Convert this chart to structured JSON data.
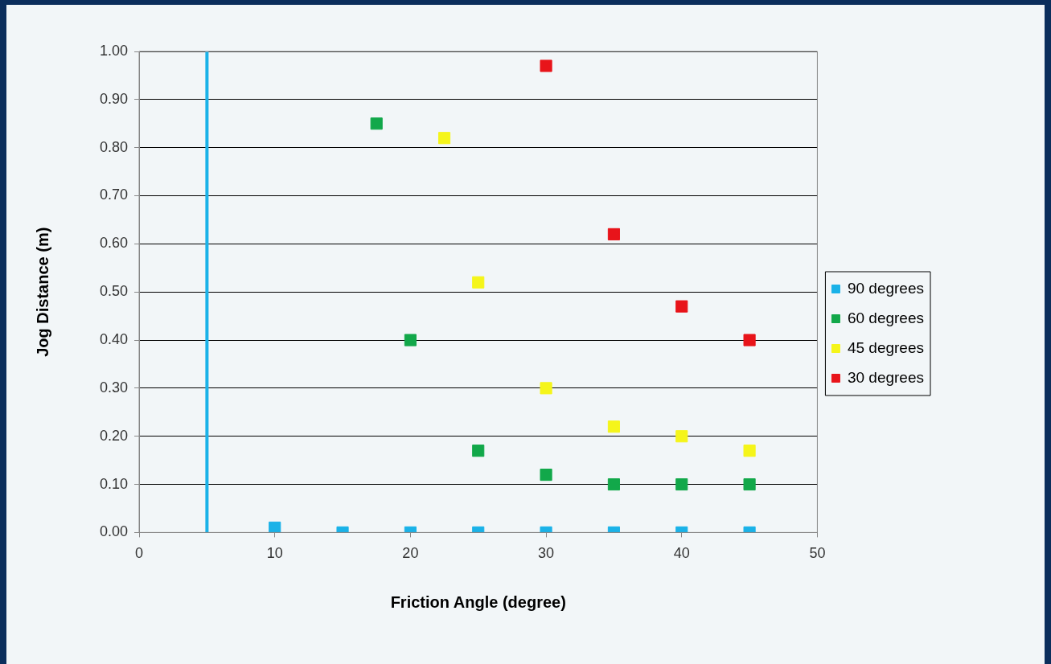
{
  "chart_data": {
    "type": "scatter",
    "xlabel": "Friction Angle (degree)",
    "ylabel": "Jog Distance (m)",
    "xlim": [
      0,
      50
    ],
    "xticks": [
      0,
      10,
      20,
      30,
      40,
      50
    ],
    "ylim": [
      0,
      1
    ],
    "yticks": [
      {
        "value": 0,
        "label": "0.00"
      },
      {
        "value": 0.1,
        "label": "0.10"
      },
      {
        "value": 0.2,
        "label": "0.20"
      },
      {
        "value": 0.3,
        "label": "0.30"
      },
      {
        "value": 0.4,
        "label": "0.40"
      },
      {
        "value": 0.5,
        "label": "0.50"
      },
      {
        "value": 0.6,
        "label": "0.60"
      },
      {
        "value": 0.7,
        "label": "0.70"
      },
      {
        "value": 0.8,
        "label": "0.80"
      },
      {
        "value": 0.9,
        "label": "0.90"
      },
      {
        "value": 1,
        "label": "1.00"
      }
    ],
    "grid": "y",
    "legend": "right",
    "marker": "square",
    "ref_lines": [
      {
        "axis": "x",
        "value": 5,
        "color": "#1ab2e8"
      }
    ],
    "series": [
      {
        "name": "90 degrees",
        "color": "#1ab2e8",
        "x": [
          10,
          15,
          20,
          25,
          30,
          35,
          40,
          45
        ],
        "values": [
          0.01,
          0,
          0,
          0,
          0,
          0,
          0,
          0
        ]
      },
      {
        "name": "60 degrees",
        "color": "#12a84a",
        "x": [
          17.5,
          20,
          25,
          30,
          35,
          40,
          45
        ],
        "values": [
          0.85,
          0.4,
          0.17,
          0.12,
          0.1,
          0.1,
          0.1
        ]
      },
      {
        "name": "45 degrees",
        "color": "#f5f51a",
        "x": [
          22.5,
          25,
          30,
          35,
          40,
          45
        ],
        "values": [
          0.82,
          0.52,
          0.3,
          0.22,
          0.2,
          0.17
        ]
      },
      {
        "name": "30 degrees",
        "color": "#e8141a",
        "x": [
          30,
          35,
          40,
          45
        ],
        "values": [
          0.97,
          0.62,
          0.47,
          0.4
        ]
      }
    ]
  }
}
